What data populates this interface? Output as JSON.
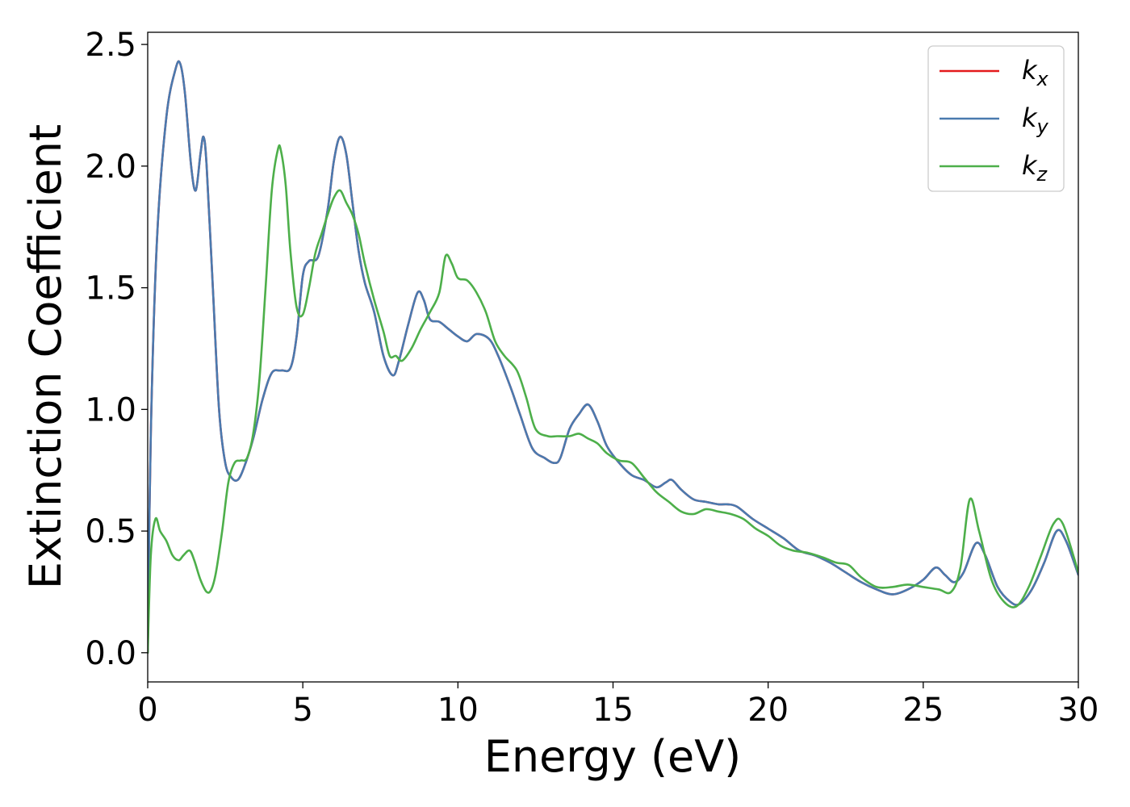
{
  "chart_data": {
    "type": "line",
    "xlabel": "Energy (eV)",
    "ylabel": "Extinction Coefficient",
    "xlim": [
      0,
      30
    ],
    "ylim": [
      -0.12,
      2.55
    ],
    "xticks": [
      0,
      5,
      10,
      15,
      20,
      25,
      30
    ],
    "xtick_labels": [
      "0",
      "5",
      "10",
      "15",
      "20",
      "25",
      "30"
    ],
    "yticks": [
      0.0,
      0.5,
      1.0,
      1.5,
      2.0,
      2.5
    ],
    "ytick_labels": [
      "0.0",
      "0.5",
      "1.0",
      "1.5",
      "2.0",
      "2.5"
    ],
    "grid": false,
    "legend_position": "top-right",
    "series": [
      {
        "name": "k",
        "subscript": "x",
        "color": "#e41a1c",
        "x": [
          0,
          0.1,
          0.3,
          0.6,
          0.9,
          1.05,
          1.2,
          1.4,
          1.55,
          1.7,
          1.8,
          1.9,
          2.1,
          2.3,
          2.5,
          2.7,
          2.9,
          3.1,
          3.4,
          3.7,
          4.0,
          4.3,
          4.6,
          4.8,
          5.0,
          5.2,
          5.5,
          5.8,
          6.0,
          6.2,
          6.4,
          6.6,
          6.8,
          7.0,
          7.3,
          7.6,
          7.9,
          8.1,
          8.4,
          8.7,
          8.9,
          9.1,
          9.4,
          9.7,
          10.0,
          10.3,
          10.6,
          11.0,
          11.3,
          11.7,
          12.0,
          12.4,
          12.8,
          13.1,
          13.3,
          13.6,
          13.9,
          14.2,
          14.5,
          14.8,
          15.2,
          15.6,
          16.0,
          16.4,
          16.7,
          16.9,
          17.2,
          17.6,
          18.0,
          18.4,
          18.7,
          19.0,
          19.5,
          20.0,
          20.5,
          21.0,
          21.5,
          22.0,
          22.5,
          23.0,
          23.5,
          24.0,
          24.5,
          25.0,
          25.4,
          25.7,
          26.0,
          26.3,
          26.7,
          27.0,
          27.4,
          27.8,
          28.1,
          28.5,
          28.9,
          29.3,
          29.6,
          30.0
        ],
        "values": [
          0.0,
          0.9,
          1.7,
          2.2,
          2.4,
          2.42,
          2.3,
          2.0,
          1.9,
          2.05,
          2.12,
          2.0,
          1.5,
          1.0,
          0.78,
          0.72,
          0.71,
          0.76,
          0.88,
          1.04,
          1.15,
          1.16,
          1.17,
          1.3,
          1.55,
          1.61,
          1.63,
          1.82,
          2.02,
          2.12,
          2.05,
          1.85,
          1.65,
          1.52,
          1.4,
          1.22,
          1.14,
          1.2,
          1.35,
          1.48,
          1.45,
          1.37,
          1.36,
          1.33,
          1.3,
          1.28,
          1.31,
          1.29,
          1.22,
          1.09,
          0.98,
          0.84,
          0.8,
          0.78,
          0.8,
          0.92,
          0.98,
          1.02,
          0.95,
          0.85,
          0.78,
          0.73,
          0.71,
          0.68,
          0.7,
          0.71,
          0.67,
          0.63,
          0.62,
          0.61,
          0.61,
          0.6,
          0.55,
          0.51,
          0.47,
          0.42,
          0.4,
          0.37,
          0.33,
          0.29,
          0.26,
          0.24,
          0.26,
          0.3,
          0.35,
          0.32,
          0.29,
          0.33,
          0.45,
          0.4,
          0.27,
          0.21,
          0.2,
          0.26,
          0.37,
          0.5,
          0.46,
          0.32
        ]
      },
      {
        "name": "k",
        "subscript": "y",
        "color": "#4a7aaf",
        "x": [
          0,
          0.1,
          0.3,
          0.6,
          0.9,
          1.05,
          1.2,
          1.4,
          1.55,
          1.7,
          1.8,
          1.9,
          2.1,
          2.3,
          2.5,
          2.7,
          2.9,
          3.1,
          3.4,
          3.7,
          4.0,
          4.3,
          4.6,
          4.8,
          5.0,
          5.2,
          5.5,
          5.8,
          6.0,
          6.2,
          6.4,
          6.6,
          6.8,
          7.0,
          7.3,
          7.6,
          7.9,
          8.1,
          8.4,
          8.7,
          8.9,
          9.1,
          9.4,
          9.7,
          10.0,
          10.3,
          10.6,
          11.0,
          11.3,
          11.7,
          12.0,
          12.4,
          12.8,
          13.1,
          13.3,
          13.6,
          13.9,
          14.2,
          14.5,
          14.8,
          15.2,
          15.6,
          16.0,
          16.4,
          16.7,
          16.9,
          17.2,
          17.6,
          18.0,
          18.4,
          18.7,
          19.0,
          19.5,
          20.0,
          20.5,
          21.0,
          21.5,
          22.0,
          22.5,
          23.0,
          23.5,
          24.0,
          24.5,
          25.0,
          25.4,
          25.7,
          26.0,
          26.3,
          26.7,
          27.0,
          27.4,
          27.8,
          28.1,
          28.5,
          28.9,
          29.3,
          29.6,
          30.0
        ],
        "values": [
          0.0,
          0.9,
          1.7,
          2.2,
          2.4,
          2.42,
          2.3,
          2.0,
          1.9,
          2.05,
          2.12,
          2.0,
          1.5,
          1.0,
          0.78,
          0.72,
          0.71,
          0.76,
          0.88,
          1.04,
          1.15,
          1.16,
          1.17,
          1.3,
          1.55,
          1.61,
          1.63,
          1.82,
          2.02,
          2.12,
          2.05,
          1.85,
          1.65,
          1.52,
          1.4,
          1.22,
          1.14,
          1.2,
          1.35,
          1.48,
          1.45,
          1.37,
          1.36,
          1.33,
          1.3,
          1.28,
          1.31,
          1.29,
          1.22,
          1.09,
          0.98,
          0.84,
          0.8,
          0.78,
          0.8,
          0.92,
          0.98,
          1.02,
          0.95,
          0.85,
          0.78,
          0.73,
          0.71,
          0.68,
          0.7,
          0.71,
          0.67,
          0.63,
          0.62,
          0.61,
          0.61,
          0.6,
          0.55,
          0.51,
          0.47,
          0.42,
          0.4,
          0.37,
          0.33,
          0.29,
          0.26,
          0.24,
          0.26,
          0.3,
          0.35,
          0.32,
          0.29,
          0.33,
          0.45,
          0.4,
          0.27,
          0.21,
          0.2,
          0.26,
          0.37,
          0.5,
          0.46,
          0.32
        ]
      },
      {
        "name": "k",
        "subscript": "z",
        "color": "#4daf4a",
        "x": [
          0,
          0.1,
          0.25,
          0.4,
          0.6,
          0.8,
          1.0,
          1.15,
          1.35,
          1.5,
          1.7,
          1.9,
          2.05,
          2.2,
          2.4,
          2.6,
          2.8,
          3.0,
          3.2,
          3.4,
          3.6,
          3.8,
          4.0,
          4.2,
          4.3,
          4.45,
          4.6,
          4.8,
          5.0,
          5.2,
          5.4,
          5.6,
          5.8,
          6.0,
          6.2,
          6.4,
          6.6,
          6.8,
          7.0,
          7.3,
          7.6,
          7.8,
          8.0,
          8.2,
          8.5,
          8.8,
          9.1,
          9.4,
          9.6,
          9.8,
          10.0,
          10.3,
          10.6,
          10.9,
          11.2,
          11.5,
          11.9,
          12.2,
          12.5,
          12.9,
          13.2,
          13.6,
          13.9,
          14.2,
          14.5,
          14.8,
          15.2,
          15.6,
          16.0,
          16.4,
          16.8,
          17.2,
          17.6,
          18.0,
          18.4,
          18.8,
          19.2,
          19.6,
          20.0,
          20.4,
          20.8,
          21.3,
          21.8,
          22.2,
          22.6,
          23.0,
          23.5,
          24.0,
          24.5,
          25.0,
          25.5,
          25.9,
          26.2,
          26.5,
          26.8,
          27.2,
          27.6,
          28.0,
          28.4,
          28.8,
          29.2,
          29.5,
          30.0
        ],
        "values": [
          0.0,
          0.4,
          0.55,
          0.5,
          0.46,
          0.4,
          0.38,
          0.4,
          0.42,
          0.38,
          0.3,
          0.25,
          0.26,
          0.33,
          0.5,
          0.7,
          0.78,
          0.79,
          0.8,
          0.9,
          1.12,
          1.5,
          1.9,
          2.07,
          2.06,
          1.92,
          1.65,
          1.42,
          1.39,
          1.5,
          1.64,
          1.72,
          1.8,
          1.87,
          1.9,
          1.85,
          1.8,
          1.72,
          1.6,
          1.45,
          1.32,
          1.22,
          1.22,
          1.2,
          1.25,
          1.33,
          1.4,
          1.48,
          1.63,
          1.6,
          1.54,
          1.53,
          1.48,
          1.4,
          1.28,
          1.22,
          1.16,
          1.05,
          0.92,
          0.89,
          0.89,
          0.89,
          0.9,
          0.88,
          0.86,
          0.82,
          0.79,
          0.78,
          0.72,
          0.66,
          0.62,
          0.58,
          0.57,
          0.59,
          0.58,
          0.57,
          0.55,
          0.51,
          0.48,
          0.44,
          0.42,
          0.41,
          0.39,
          0.37,
          0.36,
          0.31,
          0.27,
          0.27,
          0.28,
          0.27,
          0.26,
          0.25,
          0.35,
          0.63,
          0.5,
          0.3,
          0.21,
          0.19,
          0.27,
          0.4,
          0.53,
          0.53,
          0.33
        ]
      }
    ]
  }
}
